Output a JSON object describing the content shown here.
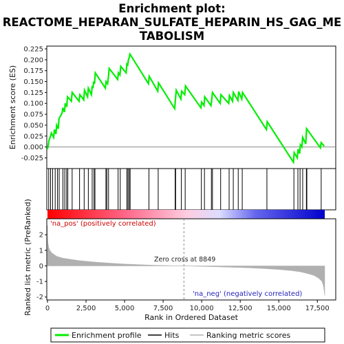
{
  "chart_data": {
    "type": "line",
    "title_lines": [
      "Enrichment plot:",
      "REACTOME_HEPARAN_SULFATE_HEPARIN_HS_GAG_ME",
      "TABOLISM"
    ],
    "es_panel": {
      "ylabel": "Enrichment score (ES)",
      "ylim": [
        -0.04,
        0.225
      ],
      "yticks": [
        "0.225",
        "0.200",
        "0.175",
        "0.150",
        "0.125",
        "0.100",
        "0.075",
        "0.050",
        "0.025",
        "0.000",
        "-0.025"
      ],
      "ytick_values": [
        0.225,
        0.2,
        0.175,
        0.15,
        0.125,
        0.1,
        0.075,
        0.05,
        0.025,
        0.0,
        -0.025
      ],
      "series": [
        {
          "name": "Enrichment profile",
          "color": "#00ee00",
          "x": [
            0,
            60,
            100,
            200,
            250,
            400,
            450,
            550,
            600,
            700,
            750,
            950,
            1000,
            1100,
            1150,
            1250,
            1300,
            1550,
            1600,
            2050,
            2100,
            2350,
            2400,
            2600,
            2650,
            2850,
            2900,
            2950,
            3000,
            3050,
            3100,
            3750,
            3800,
            3900,
            3950,
            4000,
            4550,
            4600,
            4700,
            4750,
            5100,
            5150,
            5200,
            5250,
            5300,
            5350,
            6550,
            6600,
            7150,
            7200,
            8250,
            8300,
            8350,
            8650,
            8700,
            8900,
            8950,
            9950,
            10000,
            10150,
            10200,
            10600,
            10650,
            10700,
            11200,
            11250,
            11750,
            11800,
            12000,
            12050,
            12350,
            12400,
            12600,
            12650,
            14200,
            14250,
            15950,
            16000,
            16200,
            16250,
            16350,
            16400,
            16500,
            16550,
            16750,
            16800,
            17700,
            17750,
            17950
          ],
          "y": [
            -0.005,
            0.005,
            0.015,
            0.025,
            0.032,
            0.022,
            0.04,
            0.03,
            0.05,
            0.042,
            0.065,
            0.078,
            0.09,
            0.08,
            0.1,
            0.092,
            0.115,
            0.105,
            0.125,
            0.105,
            0.12,
            0.108,
            0.13,
            0.115,
            0.135,
            0.12,
            0.14,
            0.135,
            0.15,
            0.145,
            0.17,
            0.135,
            0.15,
            0.145,
            0.16,
            0.18,
            0.155,
            0.17,
            0.165,
            0.185,
            0.17,
            0.19,
            0.188,
            0.2,
            0.205,
            0.213,
            0.145,
            0.162,
            0.128,
            0.147,
            0.088,
            0.11,
            0.13,
            0.11,
            0.128,
            0.12,
            0.14,
            0.09,
            0.103,
            0.095,
            0.115,
            0.095,
            0.108,
            0.125,
            0.1,
            0.12,
            0.1,
            0.118,
            0.105,
            0.125,
            0.107,
            0.127,
            0.11,
            0.125,
            0.04,
            0.058,
            -0.035,
            -0.013,
            -0.025,
            -0.005,
            -0.015,
            0.005,
            0.0,
            0.022,
            0.007,
            0.042,
            -0.002,
            0.01,
            0.002
          ]
        }
      ]
    },
    "hits_panel": {
      "hit_ranks": [
        80,
        200,
        330,
        500,
        650,
        760,
        1000,
        1120,
        1240,
        1320,
        1600,
        2080,
        2380,
        2650,
        2900,
        3020,
        3080,
        3790,
        3850,
        3960,
        4580,
        4720,
        5150,
        5220,
        5300,
        5360,
        6580,
        7180,
        8280,
        8310,
        8680,
        8930,
        9980,
        10180,
        10630,
        10700,
        11230,
        11780,
        12050,
        12370,
        12630,
        14230,
        15980,
        16240,
        16380,
        16550,
        16790,
        16820,
        17750
      ],
      "gradient_colors": [
        "#ff0000",
        "#ffcce0",
        "#ddddff",
        "#0000cc"
      ]
    },
    "metric_panel": {
      "ylabel": "Ranked list metric (PreRanked)",
      "ylim": [
        -2.1,
        2.85
      ],
      "yticks": [
        "2",
        "1",
        "0",
        "-1",
        "-2"
      ],
      "ytick_values": [
        2,
        1,
        0,
        -1,
        -2
      ],
      "xlabel": "Rank in Ordered Dataset",
      "xlim": [
        0,
        18500
      ],
      "xticks": [
        "0",
        "2,500",
        "5,000",
        "7,500",
        "10,000",
        "12,500",
        "15,000",
        "17,500"
      ],
      "xtick_values": [
        0,
        2500,
        5000,
        7500,
        10000,
        12500,
        15000,
        17500
      ],
      "zero_cross_rank": 8849,
      "zero_cross_label": "Zero cross at 8849",
      "pos_label": "'na_pos' (positively correlated)",
      "neg_label": "'na_neg' (negatively correlated)",
      "fill_color": "#b0b0b0",
      "metric_x": [
        0,
        30,
        80,
        150,
        300,
        600,
        1000,
        2000,
        3000,
        4000,
        5000,
        6000,
        7000,
        8000,
        8849,
        10000,
        11000,
        12000,
        13000,
        14000,
        15000,
        15800,
        16400,
        16900,
        17300,
        17600,
        17800,
        17900,
        17980
      ],
      "metric_y": [
        2.6,
        1.5,
        1.2,
        1.0,
        0.82,
        0.62,
        0.5,
        0.35,
        0.25,
        0.18,
        0.12,
        0.08,
        0.04,
        0.015,
        0.0,
        -0.03,
        -0.06,
        -0.09,
        -0.12,
        -0.17,
        -0.23,
        -0.3,
        -0.38,
        -0.5,
        -0.62,
        -0.8,
        -1.0,
        -1.3,
        -1.9
      ]
    },
    "legend": [
      {
        "label": "Enrichment profile",
        "color": "#00ee00"
      },
      {
        "label": "Hits",
        "color": "#000000"
      },
      {
        "label": "Ranking metric scores",
        "color": "#b0b0b0"
      }
    ]
  }
}
